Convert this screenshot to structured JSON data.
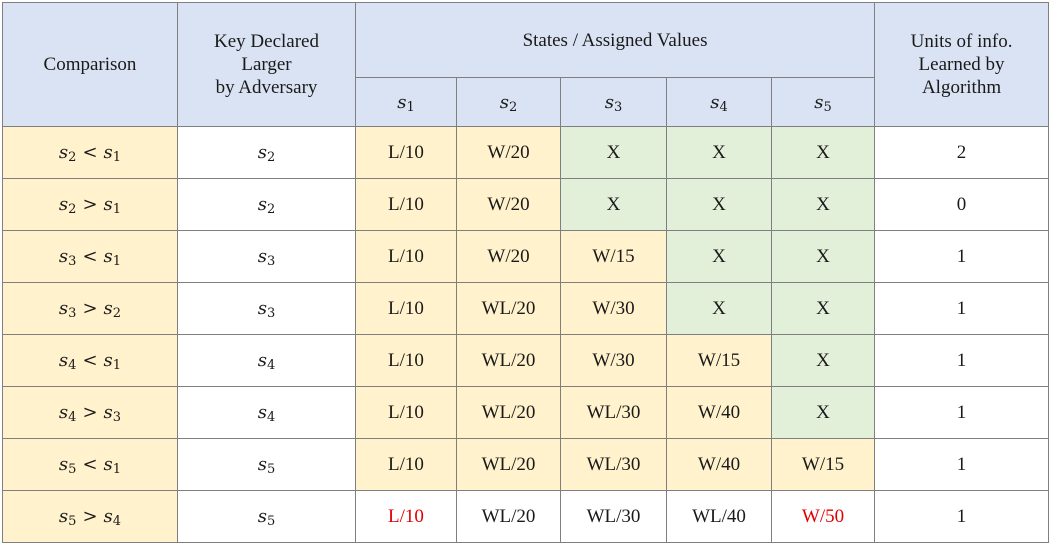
{
  "headers": {
    "comparison": "Comparison",
    "key_declared": "Key Declared\nLarger\nby Adversary",
    "states": "States / Assigned Values",
    "units": "Units of info.\nLearned by\nAlgorithm",
    "state_cols": [
      {
        "var": "s",
        "sub": "1"
      },
      {
        "var": "s",
        "sub": "2"
      },
      {
        "var": "s",
        "sub": "3"
      },
      {
        "var": "s",
        "sub": "4"
      },
      {
        "var": "s",
        "sub": "5"
      }
    ]
  },
  "rows": [
    {
      "cmp": {
        "a": "2",
        "op": "<",
        "b": "1"
      },
      "key": "2",
      "states": [
        {
          "v": "L/10",
          "bg": "yellow"
        },
        {
          "v": "W/20",
          "bg": "yellow"
        },
        {
          "v": "X",
          "bg": "green"
        },
        {
          "v": "X",
          "bg": "green"
        },
        {
          "v": "X",
          "bg": "green"
        }
      ],
      "units": "2"
    },
    {
      "cmp": {
        "a": "2",
        "op": ">",
        "b": "1"
      },
      "key": "2",
      "states": [
        {
          "v": "L/10",
          "bg": "yellow"
        },
        {
          "v": "W/20",
          "bg": "yellow"
        },
        {
          "v": "X",
          "bg": "green"
        },
        {
          "v": "X",
          "bg": "green"
        },
        {
          "v": "X",
          "bg": "green"
        }
      ],
      "units": "0"
    },
    {
      "cmp": {
        "a": "3",
        "op": "<",
        "b": "1"
      },
      "key": "3",
      "states": [
        {
          "v": "L/10",
          "bg": "yellow"
        },
        {
          "v": "W/20",
          "bg": "yellow"
        },
        {
          "v": "W/15",
          "bg": "yellow"
        },
        {
          "v": "X",
          "bg": "green"
        },
        {
          "v": "X",
          "bg": "green"
        }
      ],
      "units": "1"
    },
    {
      "cmp": {
        "a": "3",
        "op": ">",
        "b": "2"
      },
      "key": "3",
      "states": [
        {
          "v": "L/10",
          "bg": "yellow"
        },
        {
          "v": "WL/20",
          "bg": "yellow"
        },
        {
          "v": "W/30",
          "bg": "yellow"
        },
        {
          "v": "X",
          "bg": "green"
        },
        {
          "v": "X",
          "bg": "green"
        }
      ],
      "units": "1"
    },
    {
      "cmp": {
        "a": "4",
        "op": "<",
        "b": "1"
      },
      "key": "4",
      "states": [
        {
          "v": "L/10",
          "bg": "yellow"
        },
        {
          "v": "WL/20",
          "bg": "yellow"
        },
        {
          "v": "W/30",
          "bg": "yellow"
        },
        {
          "v": "W/15",
          "bg": "yellow"
        },
        {
          "v": "X",
          "bg": "green"
        }
      ],
      "units": "1"
    },
    {
      "cmp": {
        "a": "4",
        "op": ">",
        "b": "3"
      },
      "key": "4",
      "states": [
        {
          "v": "L/10",
          "bg": "yellow"
        },
        {
          "v": "WL/20",
          "bg": "yellow"
        },
        {
          "v": "WL/30",
          "bg": "yellow"
        },
        {
          "v": "W/40",
          "bg": "yellow"
        },
        {
          "v": "X",
          "bg": "green"
        }
      ],
      "units": "1"
    },
    {
      "cmp": {
        "a": "5",
        "op": "<",
        "b": "1"
      },
      "key": "5",
      "states": [
        {
          "v": "L/10",
          "bg": "yellow"
        },
        {
          "v": "WL/20",
          "bg": "yellow"
        },
        {
          "v": "WL/30",
          "bg": "yellow"
        },
        {
          "v": "W/40",
          "bg": "yellow"
        },
        {
          "v": "W/15",
          "bg": "yellow"
        }
      ],
      "units": "1"
    },
    {
      "cmp": {
        "a": "5",
        "op": ">",
        "b": "4"
      },
      "key": "5",
      "states": [
        {
          "v": "L/10",
          "bg": "white",
          "red": true
        },
        {
          "v": "WL/20",
          "bg": "white"
        },
        {
          "v": "WL/30",
          "bg": "white"
        },
        {
          "v": "WL/40",
          "bg": "white"
        },
        {
          "v": "W/50",
          "bg": "white",
          "red": true
        }
      ],
      "units": "1"
    }
  ],
  "colors": {
    "header_bg": "#dae3f3",
    "yellow_bg": "#fff2cc",
    "green_bg": "#e2efd9",
    "highlight_red": "#e00000"
  }
}
